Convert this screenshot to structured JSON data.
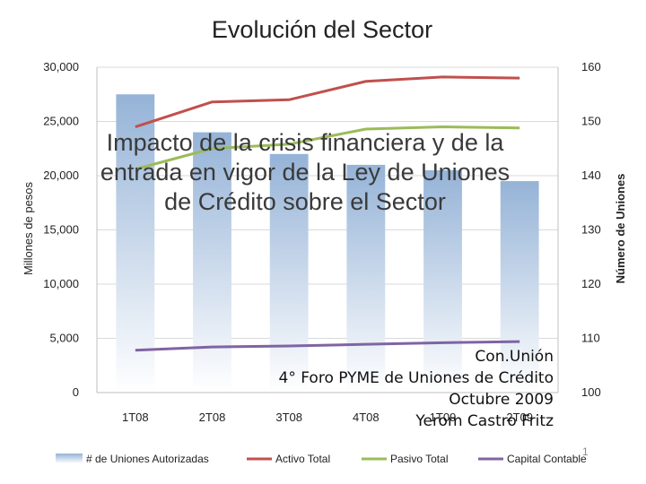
{
  "slide": {
    "title_lines": [
      "Impacto de la crisis financiera y de la",
      "entrada en vigor de la Ley de Uniones",
      "de Crédito sobre el Sector"
    ],
    "credits": [
      "Con.Unión",
      "4° Foro PYME de Uniones de Crédito",
      "Octubre 2009",
      "Yerom Castro Fritz"
    ],
    "slide_number": "1"
  },
  "chart_data": {
    "type": "bar",
    "title": "Evolución del Sector",
    "categories": [
      "1T08",
      "2T08",
      "3T08",
      "4T08",
      "1T09",
      "2T09"
    ],
    "ylabel": "Millones de pesos",
    "ylabel_right": "Número de Uniones",
    "ylim": [
      0,
      30000
    ],
    "ylim_right": [
      100,
      160
    ],
    "yticks": [
      "0",
      "5,000",
      "10,000",
      "15,000",
      "20,000",
      "25,000",
      "30,000"
    ],
    "yticks_right": [
      "100",
      "110",
      "120",
      "130",
      "140",
      "150",
      "160"
    ],
    "legend_position": "bottom",
    "bar_series": {
      "name": "# de Uniones Autorizadas",
      "axis": "right",
      "values": [
        155,
        148,
        144,
        142,
        141,
        139
      ],
      "color": "#95b3d7"
    },
    "series": [
      {
        "name": "Activo Total",
        "axis": "left",
        "values": [
          24500,
          26800,
          27000,
          28700,
          29100,
          29000
        ],
        "color": "#c0504d"
      },
      {
        "name": "Pasivo Total",
        "axis": "left",
        "values": [
          20600,
          22500,
          22900,
          24300,
          24500,
          24400
        ],
        "color": "#9bbb59"
      },
      {
        "name": "Capital Contable",
        "axis": "left",
        "values": [
          3900,
          4200,
          4300,
          4450,
          4600,
          4700
        ],
        "color": "#8064a2"
      }
    ]
  }
}
